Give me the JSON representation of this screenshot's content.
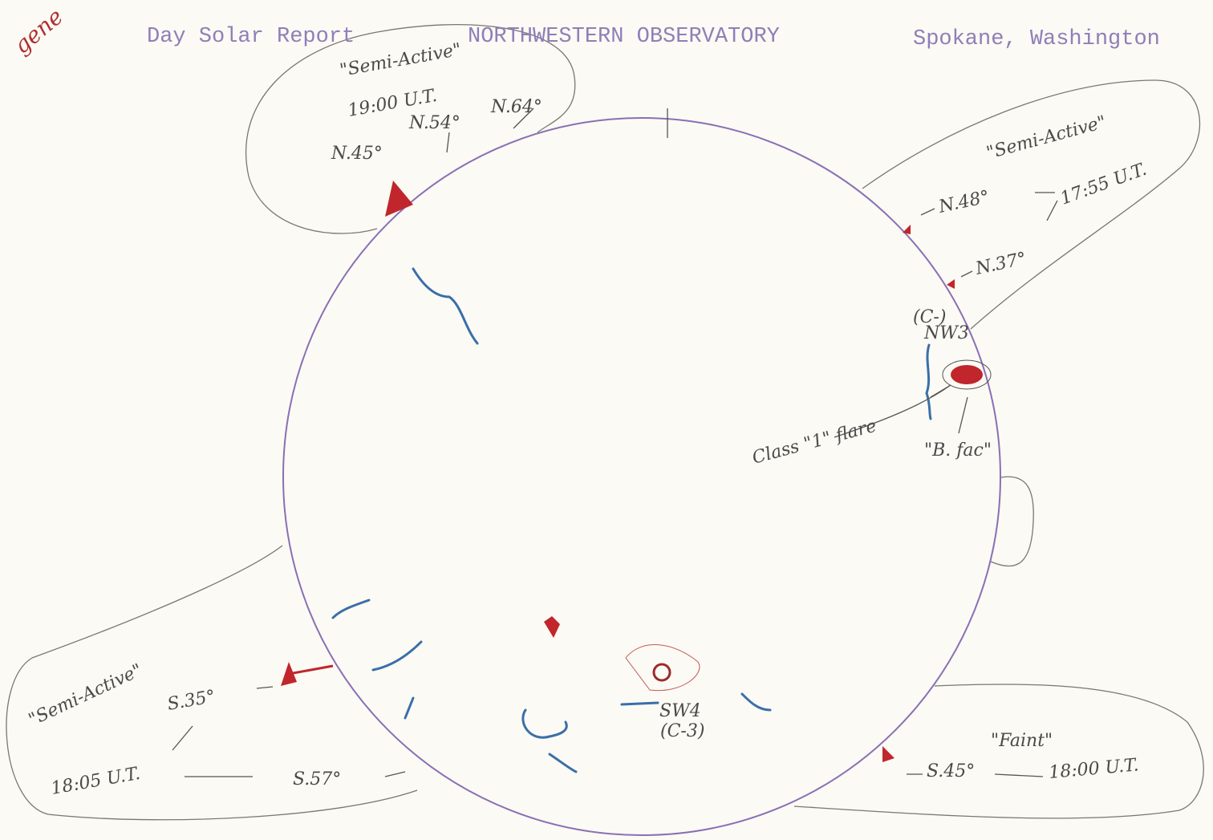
{
  "header": {
    "stamp": "gene",
    "left": "Day Solar Report",
    "center": "NORTHWESTERN OBSERVATORY",
    "right": "Spokane, Washington"
  },
  "regions": [
    {
      "status": "\"Semi-Active\"",
      "time": "19:00 U.T.",
      "latitudes": [
        "N.45°",
        "N.54°",
        "N.64°"
      ]
    },
    {
      "status": "\"Semi-Active\"",
      "time": "17:55 U.T.",
      "latitudes": [
        "N.48°",
        "N.37°"
      ]
    },
    {
      "status": "\"Semi-Active\"",
      "time": "18:05 U.T.",
      "latitudes": [
        "S.35°",
        "S.57°"
      ]
    },
    {
      "status": "\"Faint\"",
      "time": "18:00 U.T.",
      "latitudes": [
        "S.45°"
      ]
    }
  ],
  "disk_labels": {
    "nw_class": "(C-)",
    "nw_name": "NW3",
    "flare": "Class \"1\" flare",
    "faculae": "\"B. fac\"",
    "sw_name": "SW4",
    "sw_class": "(C-3)"
  }
}
